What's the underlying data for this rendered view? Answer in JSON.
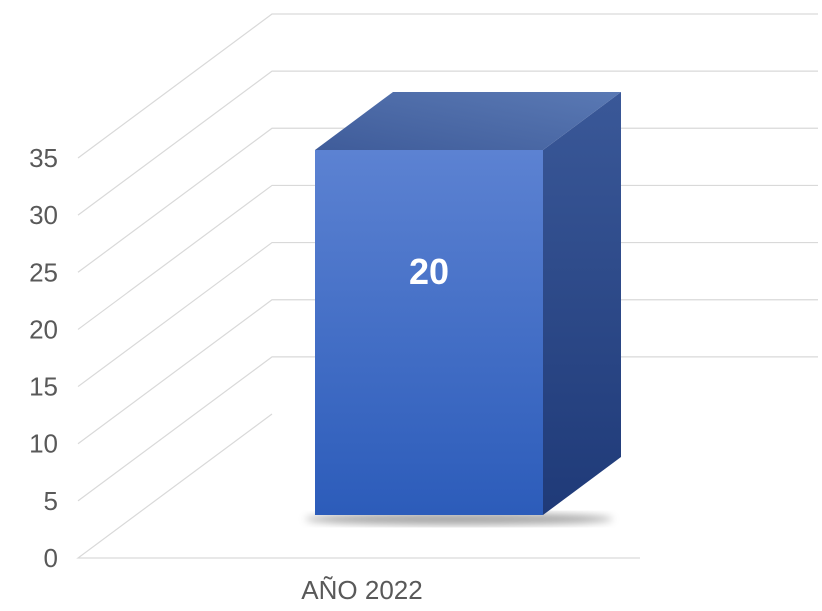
{
  "chart_data": {
    "type": "bar",
    "title": "",
    "xlabel": "",
    "ylabel": "",
    "categories": [
      "AÑO 2022"
    ],
    "values": [
      20
    ],
    "data_labels": [
      "20"
    ],
    "yticks": [
      0,
      5,
      10,
      15,
      20,
      25,
      30,
      35
    ],
    "ylim": [
      0,
      35
    ],
    "grid": true,
    "legend": "none",
    "style": "3d-column",
    "bar_color": "#4472c4"
  }
}
